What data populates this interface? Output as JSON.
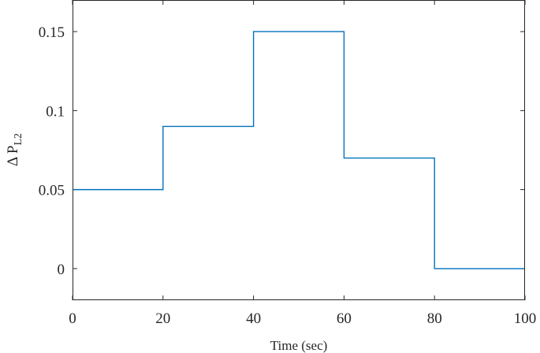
{
  "chart_data": {
    "type": "line",
    "step": true,
    "title": "",
    "xlabel": "Time (sec)",
    "ylabel": {
      "main": "Δ P",
      "subscript": "L2"
    },
    "xlim": [
      0,
      100
    ],
    "ylim": [
      -0.02,
      0.17
    ],
    "grid": false,
    "box": true,
    "x_ticks": [
      0,
      20,
      40,
      60,
      80,
      100
    ],
    "x_tick_labels": [
      "0",
      "20",
      "40",
      "60",
      "80",
      "100"
    ],
    "y_ticks": [
      0,
      0.05,
      0.1,
      0.15
    ],
    "y_tick_labels": [
      "0",
      "0.05",
      "0.1",
      "0.15"
    ],
    "series": [
      {
        "color": "#0072BD",
        "x": [
          0,
          20,
          20,
          40,
          40,
          60,
          60,
          80,
          80,
          100
        ],
        "y": [
          0.05,
          0.05,
          0.09,
          0.09,
          0.15,
          0.15,
          0.07,
          0.07,
          0,
          0
        ]
      }
    ]
  }
}
